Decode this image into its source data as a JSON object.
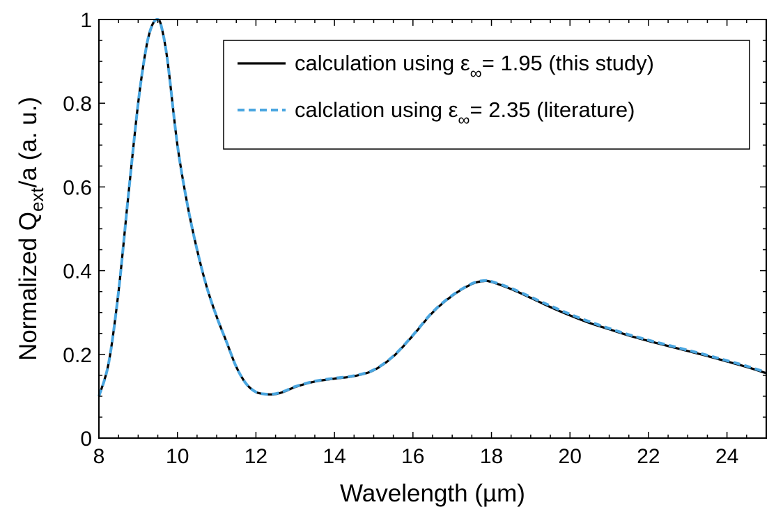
{
  "chart_data": {
    "type": "line",
    "xlabel": "Wavelength (µm)",
    "ylabel": {
      "prefix": "Normalized Q",
      "subscript": "ext",
      "suffix": "/a (a. u.)"
    },
    "xlim": [
      8,
      25
    ],
    "ylim": [
      0,
      1
    ],
    "x_ticks": [
      8,
      10,
      12,
      14,
      16,
      18,
      20,
      22,
      24
    ],
    "x_tick_labels": [
      "8",
      "10",
      "12",
      "14",
      "16",
      "18",
      "20",
      "22",
      "24"
    ],
    "x_minor_step": 0.5,
    "y_ticks": [
      0,
      0.2,
      0.4,
      0.6,
      0.8,
      1
    ],
    "y_tick_labels": [
      "0",
      "0.2",
      "0.4",
      "0.6",
      "0.8",
      "1"
    ],
    "y_minor_step": 0.05,
    "grid": false,
    "legend_position": "top-right",
    "series": [
      {
        "name": "calculation using ε∞= 1.95 (this study)",
        "legend": {
          "before": "calculation using ε",
          "sub": "∞",
          "after": "= 1.95 (this study)"
        },
        "color": "#000000",
        "style": "solid",
        "x": [
          8.0,
          8.25,
          8.5,
          8.75,
          9.0,
          9.2,
          9.35,
          9.5,
          9.6,
          9.75,
          10.0,
          10.25,
          10.5,
          10.75,
          11.0,
          11.25,
          11.5,
          11.75,
          12.0,
          12.25,
          12.5,
          12.75,
          13.0,
          13.5,
          14.0,
          14.5,
          15.0,
          15.5,
          16.0,
          16.5,
          17.0,
          17.5,
          17.8,
          18.0,
          18.5,
          19.0,
          19.5,
          20.0,
          20.5,
          21.0,
          21.5,
          22.0,
          22.5,
          23.0,
          23.5,
          24.0,
          24.5,
          25.0
        ],
        "y": [
          0.1,
          0.18,
          0.35,
          0.58,
          0.8,
          0.93,
          0.985,
          1.0,
          0.98,
          0.9,
          0.7,
          0.56,
          0.45,
          0.36,
          0.29,
          0.23,
          0.17,
          0.13,
          0.11,
          0.105,
          0.105,
          0.112,
          0.122,
          0.135,
          0.142,
          0.148,
          0.162,
          0.195,
          0.245,
          0.3,
          0.34,
          0.368,
          0.375,
          0.373,
          0.356,
          0.335,
          0.313,
          0.293,
          0.275,
          0.26,
          0.245,
          0.232,
          0.22,
          0.208,
          0.196,
          0.183,
          0.17,
          0.155
        ]
      },
      {
        "name": "calclation using ε∞= 2.35 (literature)",
        "legend": {
          "before": "calclation using ε",
          "sub": "∞",
          "after": "= 2.35 (literature)"
        },
        "color": "#4aa6e0",
        "style": "dashed",
        "x": [
          8.0,
          8.25,
          8.5,
          8.75,
          9.0,
          9.2,
          9.35,
          9.5,
          9.6,
          9.75,
          10.0,
          10.25,
          10.5,
          10.75,
          11.0,
          11.25,
          11.5,
          11.75,
          12.0,
          12.25,
          12.5,
          12.75,
          13.0,
          13.5,
          14.0,
          14.5,
          15.0,
          15.5,
          16.0,
          16.5,
          17.0,
          17.5,
          17.8,
          18.0,
          18.5,
          19.0,
          19.5,
          20.0,
          20.5,
          21.0,
          21.5,
          22.0,
          22.5,
          23.0,
          23.5,
          24.0,
          24.5,
          25.0
        ],
        "y": [
          0.1,
          0.18,
          0.35,
          0.58,
          0.8,
          0.93,
          0.985,
          1.0,
          0.98,
          0.9,
          0.7,
          0.56,
          0.45,
          0.36,
          0.29,
          0.23,
          0.17,
          0.13,
          0.11,
          0.105,
          0.106,
          0.113,
          0.123,
          0.136,
          0.143,
          0.149,
          0.163,
          0.196,
          0.246,
          0.301,
          0.341,
          0.369,
          0.376,
          0.374,
          0.358,
          0.337,
          0.316,
          0.296,
          0.278,
          0.262,
          0.247,
          0.234,
          0.222,
          0.21,
          0.198,
          0.185,
          0.172,
          0.157
        ]
      }
    ]
  }
}
